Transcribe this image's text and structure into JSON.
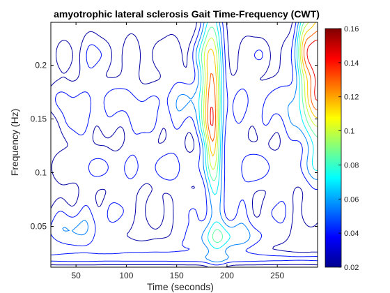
{
  "chart_data": {
    "type": "contour",
    "title": "amyotrophic lateral sclerosis Gait Time-Frequency (CWT)",
    "xlabel": "Time (seconds)",
    "ylabel": "Frequency (Hz)",
    "xlim": [
      25,
      290
    ],
    "ylim": [
      0.012,
      0.24
    ],
    "x_ticks": [
      50,
      100,
      150,
      200,
      250
    ],
    "x_tick_labels": [
      "50",
      "100",
      "150",
      "200",
      "250"
    ],
    "y_ticks": [
      0.05,
      0.1,
      0.15,
      0.2
    ],
    "y_tick_labels": [
      "0.05",
      "0.1",
      "0.15",
      "0.2"
    ],
    "colorbar": {
      "colormap": "jet",
      "range": [
        0.02,
        0.16
      ],
      "ticks": [
        0.02,
        0.04,
        0.06,
        0.08,
        0.1,
        0.12,
        0.14,
        0.16
      ],
      "tick_labels": [
        "0.02",
        "0.04",
        "0.06",
        "0.08",
        "0.1",
        "0.12",
        "0.14",
        "0.16"
      ]
    },
    "contour_levels": [
      0.025,
      0.04,
      0.055,
      0.07,
      0.085,
      0.1,
      0.115,
      0.13,
      0.145
    ],
    "features": [
      {
        "time": 185,
        "frequency": 0.19,
        "peak": 0.145,
        "note": "strong vertical ridge 175-200 s"
      },
      {
        "time": 285,
        "frequency": 0.2,
        "peak": 0.15,
        "note": "high magnitude at right edge"
      },
      {
        "time": 275,
        "frequency": 0.215,
        "peak": 0.1
      },
      {
        "time": 45,
        "frequency": 0.045,
        "peak": 0.06
      },
      {
        "time": 200,
        "frequency": 0.04,
        "peak": 0.075
      },
      {
        "time": 188,
        "frequency": 0.13,
        "peak": 0.08
      }
    ],
    "grid": false,
    "legend": "colorbar-right"
  }
}
